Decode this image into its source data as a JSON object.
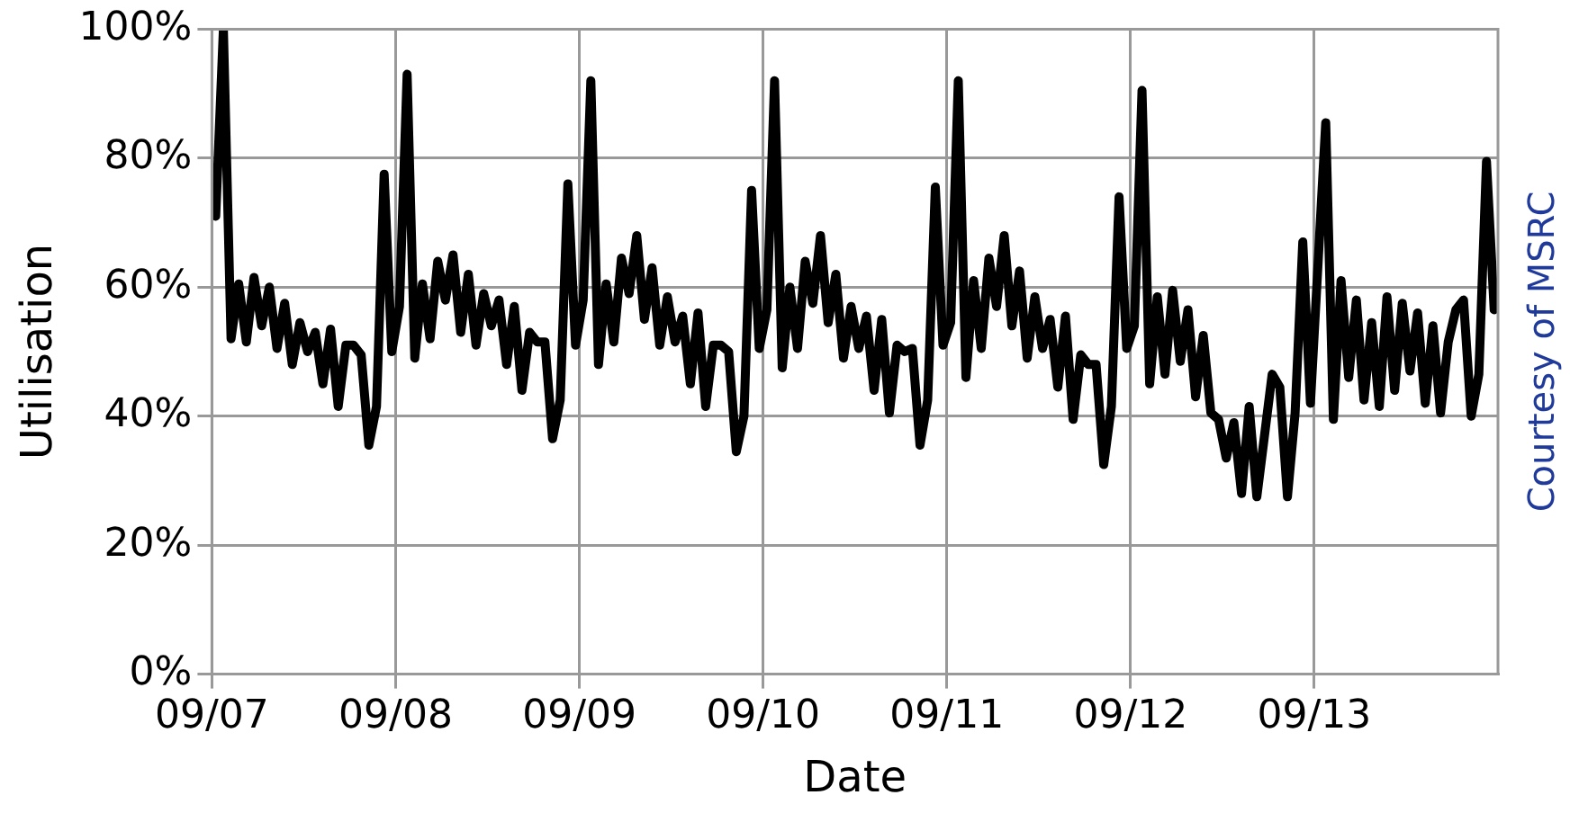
{
  "chart_data": {
    "type": "line",
    "xlabel": "Date",
    "ylabel": "Utilisation",
    "annotations": [
      "Courtesy of MSRC"
    ],
    "xlim": [
      "--09-07",
      "--09-14"
    ],
    "xticks": [
      {
        "value": "--09-07",
        "label": "09/07"
      },
      {
        "value": "--09-08",
        "label": "09/08"
      },
      {
        "value": "--09-09",
        "label": "09/09"
      },
      {
        "value": "--09-10",
        "label": "09/10"
      },
      {
        "value": "--09-11",
        "label": "09/11"
      },
      {
        "value": "--09-12",
        "label": "09/12"
      },
      {
        "value": "--09-13",
        "label": "09/13"
      }
    ],
    "ylim": [
      0,
      100
    ],
    "yticks": [
      {
        "value": 0,
        "label": "0%"
      },
      {
        "value": 20,
        "label": "20%"
      },
      {
        "value": 40,
        "label": "40%"
      },
      {
        "value": 60,
        "label": "60%"
      },
      {
        "value": 80,
        "label": "80%"
      },
      {
        "value": 100,
        "label": "100%"
      }
    ],
    "grid": true,
    "legend": false,
    "marker": "none",
    "line_style": "solid",
    "series": [
      {
        "color": "#000000",
        "x": [
          "--09-07T00:30",
          "--09-07T01:30",
          "--09-07T02:30",
          "--09-07T03:30",
          "--09-07T04:30",
          "--09-07T05:30",
          "--09-07T06:30",
          "--09-07T07:30",
          "--09-07T08:30",
          "--09-07T09:30",
          "--09-07T10:30",
          "--09-07T11:30",
          "--09-07T12:30",
          "--09-07T13:30",
          "--09-07T14:30",
          "--09-07T15:30",
          "--09-07T16:30",
          "--09-07T17:30",
          "--09-07T18:30",
          "--09-07T19:30",
          "--09-07T20:30",
          "--09-07T21:30",
          "--09-07T22:30",
          "--09-07T23:30",
          "--09-08T00:30",
          "--09-08T01:30",
          "--09-08T02:30",
          "--09-08T03:30",
          "--09-08T04:30",
          "--09-08T05:30",
          "--09-08T06:30",
          "--09-08T07:30",
          "--09-08T08:30",
          "--09-08T09:30",
          "--09-08T10:30",
          "--09-08T11:30",
          "--09-08T12:30",
          "--09-08T13:30",
          "--09-08T14:30",
          "--09-08T15:30",
          "--09-08T16:30",
          "--09-08T17:30",
          "--09-08T18:30",
          "--09-08T19:30",
          "--09-08T20:30",
          "--09-08T21:30",
          "--09-08T22:30",
          "--09-08T23:30",
          "--09-09T00:30",
          "--09-09T01:30",
          "--09-09T02:30",
          "--09-09T03:30",
          "--09-09T04:30",
          "--09-09T05:30",
          "--09-09T06:30",
          "--09-09T07:30",
          "--09-09T08:30",
          "--09-09T09:30",
          "--09-09T10:30",
          "--09-09T11:30",
          "--09-09T12:30",
          "--09-09T13:30",
          "--09-09T14:30",
          "--09-09T15:30",
          "--09-09T16:30",
          "--09-09T17:30",
          "--09-09T18:30",
          "--09-09T19:30",
          "--09-09T20:30",
          "--09-09T21:30",
          "--09-09T22:30",
          "--09-09T23:30",
          "--09-10T00:30",
          "--09-10T01:30",
          "--09-10T02:30",
          "--09-10T03:30",
          "--09-10T04:30",
          "--09-10T05:30",
          "--09-10T06:30",
          "--09-10T07:30",
          "--09-10T08:30",
          "--09-10T09:30",
          "--09-10T10:30",
          "--09-10T11:30",
          "--09-10T12:30",
          "--09-10T13:30",
          "--09-10T14:30",
          "--09-10T15:30",
          "--09-10T16:30",
          "--09-10T17:30",
          "--09-10T18:30",
          "--09-10T19:30",
          "--09-10T20:30",
          "--09-10T21:30",
          "--09-10T22:30",
          "--09-10T23:30",
          "--09-11T00:30",
          "--09-11T01:30",
          "--09-11T02:30",
          "--09-11T03:30",
          "--09-11T04:30",
          "--09-11T05:30",
          "--09-11T06:30",
          "--09-11T07:30",
          "--09-11T08:30",
          "--09-11T09:30",
          "--09-11T10:30",
          "--09-11T11:30",
          "--09-11T12:30",
          "--09-11T13:30",
          "--09-11T14:30",
          "--09-11T15:30",
          "--09-11T16:30",
          "--09-11T17:30",
          "--09-11T18:30",
          "--09-11T19:30",
          "--09-11T20:30",
          "--09-11T21:30",
          "--09-11T22:30",
          "--09-11T23:30",
          "--09-12T00:30",
          "--09-12T01:30",
          "--09-12T02:30",
          "--09-12T03:30",
          "--09-12T04:30",
          "--09-12T05:30",
          "--09-12T06:30",
          "--09-12T07:30",
          "--09-12T08:30",
          "--09-12T09:30",
          "--09-12T10:30",
          "--09-12T11:30",
          "--09-12T12:30",
          "--09-12T13:30",
          "--09-12T14:30",
          "--09-12T15:30",
          "--09-12T16:30",
          "--09-12T18:30",
          "--09-12T19:30",
          "--09-12T20:30",
          "--09-12T21:30",
          "--09-12T22:30",
          "--09-12T23:30",
          "--09-13T01:30",
          "--09-13T02:30",
          "--09-13T03:30",
          "--09-13T04:30",
          "--09-13T05:30",
          "--09-13T06:30",
          "--09-13T07:30",
          "--09-13T08:30",
          "--09-13T09:30",
          "--09-13T10:30",
          "--09-13T11:30",
          "--09-13T12:30",
          "--09-13T13:30",
          "--09-13T14:30",
          "--09-13T15:30",
          "--09-13T16:30",
          "--09-13T17:30",
          "--09-13T18:30",
          "--09-13T19:30",
          "--09-13T20:30",
          "--09-13T21:30",
          "--09-13T22:30",
          "--09-13T23:30"
        ],
        "values": [
          71,
          100,
          52,
          60.5,
          51.5,
          61.5,
          54,
          60,
          50.5,
          57.5,
          48,
          54.5,
          50,
          53,
          45,
          53.5,
          41.5,
          51,
          51,
          49.5,
          35.5,
          41.5,
          77.5,
          50,
          57,
          93,
          49,
          60.5,
          52,
          64,
          58,
          65,
          53,
          62,
          51,
          59,
          54,
          58,
          48,
          57,
          44,
          53,
          51.5,
          51.5,
          36.5,
          42.5,
          76,
          51,
          58,
          92,
          48,
          60.5,
          51.5,
          64.5,
          59,
          68,
          55,
          63,
          51,
          58.5,
          51.5,
          55.5,
          45,
          56,
          41.5,
          51,
          51,
          50,
          34.5,
          40,
          75,
          50.5,
          56.5,
          92,
          47.5,
          60,
          50.5,
          64,
          57.5,
          68,
          54.5,
          62,
          49,
          57,
          50.5,
          55.5,
          44,
          55,
          40.5,
          51,
          50,
          50.5,
          35.5,
          42.5,
          75.5,
          51,
          54.5,
          92,
          46,
          61,
          50.5,
          64.5,
          57,
          68,
          54,
          62.5,
          49,
          58.5,
          50.5,
          55,
          44.5,
          55.5,
          39.5,
          49.5,
          48,
          48,
          32.5,
          41.5,
          74,
          50.5,
          54,
          90.5,
          45,
          58.5,
          46.5,
          59.5,
          48.5,
          56.5,
          43,
          52.5,
          40.5,
          39.5,
          33.5,
          39,
          28,
          41.5,
          27.5,
          46.5,
          44.5,
          27.5,
          40.5,
          67,
          42,
          85.5,
          39.5,
          61,
          46,
          58,
          42.5,
          54.5,
          41.5,
          58.5,
          44,
          57.5,
          47,
          56,
          42,
          54,
          40.5,
          51.5,
          56.5,
          58,
          40,
          46.5,
          79.5,
          56.5
        ]
      }
    ]
  }
}
